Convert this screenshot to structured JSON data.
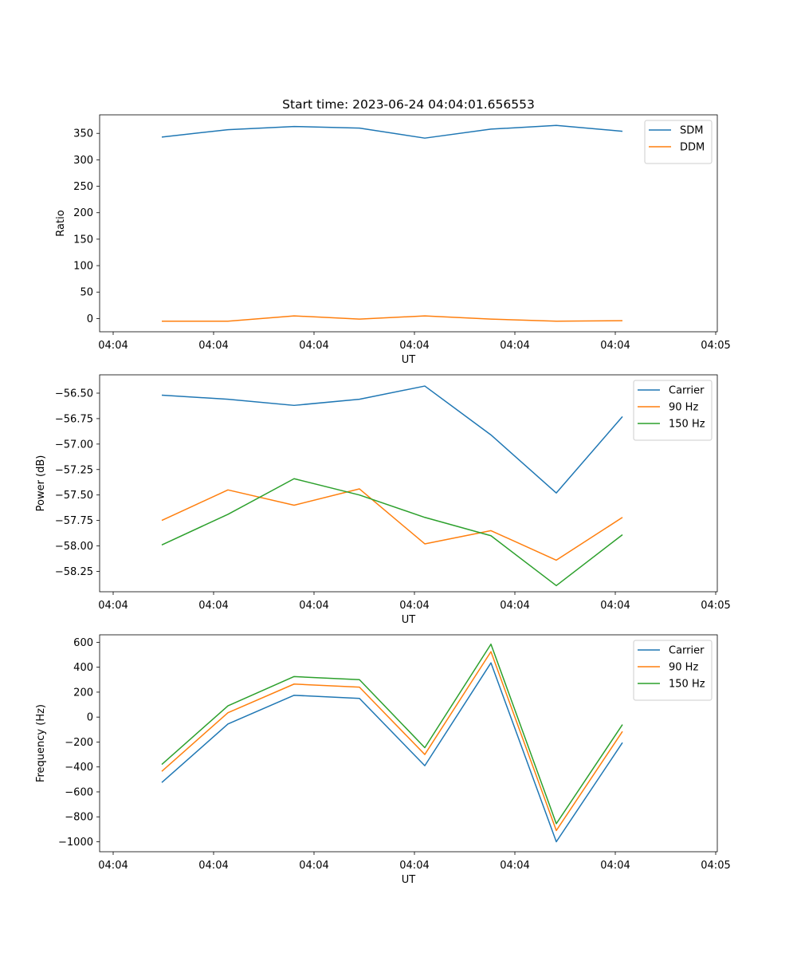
{
  "title": "Start time: 2023-06-24 04:04:01.656553",
  "chart_data": [
    {
      "type": "line",
      "xlabel": "UT",
      "ylabel": "Ratio",
      "x_tick_labels": [
        "04:04",
        "04:04",
        "04:04",
        "04:04",
        "04:04",
        "04:04",
        "04:05"
      ],
      "ylim": [
        -25,
        385
      ],
      "yticks": [
        0,
        50,
        100,
        150,
        200,
        250,
        300,
        350
      ],
      "ytick_labels": [
        "0",
        "50",
        "100",
        "150",
        "200",
        "250",
        "300",
        "350"
      ],
      "legend_position": "top-right",
      "series": [
        {
          "name": "SDM",
          "color": "#1f77b4",
          "values": [
            343,
            357,
            363,
            360,
            341,
            358,
            365,
            354
          ]
        },
        {
          "name": "DDM",
          "color": "#ff7f0e",
          "values": [
            -5,
            -5,
            5,
            -1,
            5,
            -1,
            -5,
            -4
          ]
        }
      ]
    },
    {
      "type": "line",
      "xlabel": "UT",
      "ylabel": "Power (dB)",
      "x_tick_labels": [
        "04:04",
        "04:04",
        "04:04",
        "04:04",
        "04:04",
        "04:04",
        "04:05"
      ],
      "ylim": [
        -58.45,
        -56.32
      ],
      "yticks": [
        -56.5,
        -56.75,
        -57.0,
        -57.25,
        -57.5,
        -57.75,
        -58.0,
        -58.25
      ],
      "ytick_labels": [
        "−56.50",
        "−56.75",
        "−57.00",
        "−57.25",
        "−57.50",
        "−57.75",
        "−58.00",
        "−58.25"
      ],
      "legend_position": "top-right",
      "series": [
        {
          "name": "Carrier",
          "color": "#1f77b4",
          "values": [
            -56.52,
            -56.56,
            -56.62,
            -56.56,
            -56.43,
            -56.91,
            -57.48,
            -56.73
          ]
        },
        {
          "name": "90 Hz",
          "color": "#ff7f0e",
          "values": [
            -57.75,
            -57.45,
            -57.6,
            -57.44,
            -57.98,
            -57.85,
            -58.14,
            -57.72
          ]
        },
        {
          "name": "150 Hz",
          "color": "#2ca02c",
          "values": [
            -57.99,
            -57.69,
            -57.34,
            -57.5,
            -57.72,
            -57.9,
            -58.39,
            -57.89
          ]
        }
      ]
    },
    {
      "type": "line",
      "xlabel": "UT",
      "ylabel": "Frequency (Hz)",
      "x_tick_labels": [
        "04:04",
        "04:04",
        "04:04",
        "04:04",
        "04:04",
        "04:04",
        "04:05"
      ],
      "ylim": [
        -1080,
        660
      ],
      "yticks": [
        600,
        400,
        200,
        0,
        -200,
        -400,
        -600,
        -800,
        -1000
      ],
      "ytick_labels": [
        "600",
        "400",
        "200",
        "0",
        "−200",
        "−400",
        "−600",
        "−800",
        "−1000"
      ],
      "legend_position": "top-right",
      "series": [
        {
          "name": "Carrier",
          "color": "#1f77b4",
          "values": [
            -525,
            -55,
            175,
            150,
            -390,
            435,
            -1000,
            -205
          ]
        },
        {
          "name": "90 Hz",
          "color": "#ff7f0e",
          "values": [
            -435,
            35,
            265,
            240,
            -300,
            525,
            -910,
            -115
          ]
        },
        {
          "name": "150 Hz",
          "color": "#2ca02c",
          "values": [
            -380,
            90,
            325,
            300,
            -245,
            585,
            -855,
            -60
          ]
        }
      ]
    }
  ]
}
